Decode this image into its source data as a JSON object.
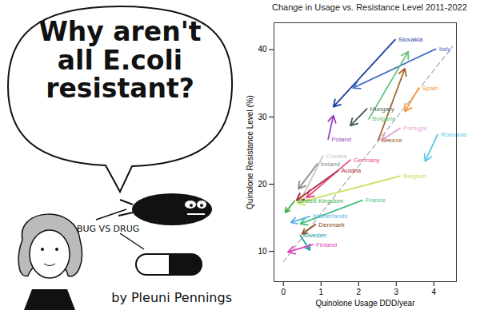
{
  "cartoon": {
    "title": "Why aren't all E.coli resistant?",
    "label": "BUG VS DRUG",
    "byline": "by Pleuni Pennings"
  },
  "chart_data": {
    "type": "arrow",
    "title": "Change in Usage vs. Resistance Level 2011-2022",
    "x_label": "Quinolone Usage DDD/year",
    "y_label": "Quinolone Resistance Level (%)",
    "xlim": [
      -0.25,
      4.6
    ],
    "ylim": [
      5.5,
      44
    ],
    "xticks": [
      0,
      1,
      2,
      3,
      4
    ],
    "yticks": [
      10,
      20,
      30,
      40
    ],
    "reference_line": {
      "x": [
        0,
        4.5
      ],
      "values": [
        8.5,
        40.5
      ],
      "color": "#aaaaaa",
      "line_style": "dashed"
    },
    "series": [
      {
        "name": "Slovakia",
        "color": "#1f3f9f",
        "x": [
          2.97,
          1.33
        ],
        "values": [
          41.5,
          31.5
        ]
      },
      {
        "name": "Italy",
        "color": "#4a72c8",
        "x": [
          4.05,
          1.85
        ],
        "values": [
          40.1,
          34.3
        ]
      },
      {
        "name": "Spain",
        "color": "#f39a3a",
        "x": [
          3.6,
          3.23
        ],
        "values": [
          34.3,
          30.8
        ]
      },
      {
        "name": "Hungary",
        "color": "#3f5a5a",
        "x": [
          2.22,
          1.78
        ],
        "values": [
          31.2,
          28.7
        ]
      },
      {
        "name": "Bulgaria",
        "color": "#66c27a",
        "x": [
          2.27,
          3.32
        ],
        "values": [
          29.7,
          39.7
        ]
      },
      {
        "name": "Poland",
        "color": "#9b3fc0",
        "x": [
          1.19,
          1.33
        ],
        "values": [
          26.7,
          30.2
        ]
      },
      {
        "name": "Portugal",
        "color": "#e7a7d8",
        "x": [
          3.1,
          2.6
        ],
        "values": [
          28.3,
          26.5
        ]
      },
      {
        "name": "Greece",
        "color": "#a0662a",
        "x": [
          2.52,
          3.23
        ],
        "values": [
          26.5,
          37.2
        ]
      },
      {
        "name": "Romania",
        "color": "#5ac8e8",
        "x": [
          4.1,
          3.77
        ],
        "values": [
          27.4,
          23.4
        ]
      },
      {
        "name": "Croatia",
        "color": "#c8c8c8",
        "x": [
          1.05,
          0.45
        ],
        "values": [
          24.2,
          17.5
        ]
      },
      {
        "name": "Ireland",
        "color": "#8a8a8a",
        "x": [
          0.9,
          0.4
        ],
        "values": [
          23.0,
          19.3
        ]
      },
      {
        "name": "Germany",
        "color": "#e8507a",
        "x": [
          1.78,
          0.62
        ],
        "values": [
          23.6,
          18.0
        ]
      },
      {
        "name": "Austria",
        "color": "#b02840",
        "x": [
          1.45,
          0.35
        ],
        "values": [
          22.0,
          17.6
        ]
      },
      {
        "name": "Belgium",
        "color": "#c8e060",
        "x": [
          3.1,
          0.37
        ],
        "values": [
          21.2,
          17.2
        ]
      },
      {
        "name": "United Kingdom",
        "color": "#3fb050",
        "x": [
          0.3,
          0.05
        ],
        "values": [
          17.5,
          15.8
        ]
      },
      {
        "name": "France",
        "color": "#40c080",
        "x": [
          2.1,
          0.45
        ],
        "values": [
          17.6,
          14.1
        ]
      },
      {
        "name": "Netherlands",
        "color": "#60b0e8",
        "x": [
          0.7,
          0.2
        ],
        "values": [
          15.2,
          14.3
        ]
      },
      {
        "name": "Denmark",
        "color": "#8a5020",
        "x": [
          0.85,
          0.5
        ],
        "values": [
          14.0,
          12.6
        ]
      },
      {
        "name": "Sweden",
        "color": "#20a0a0",
        "x": [
          0.45,
          0.7
        ],
        "values": [
          12.4,
          10.2
        ]
      },
      {
        "name": "Finland",
        "color": "#e040c0",
        "x": [
          0.78,
          0.12
        ],
        "values": [
          11.0,
          9.9
        ]
      }
    ]
  }
}
